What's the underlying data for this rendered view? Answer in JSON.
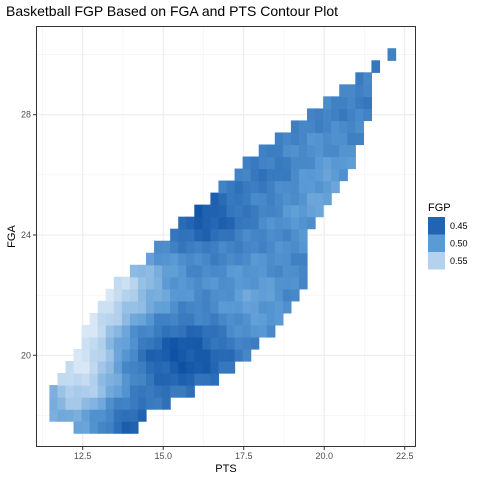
{
  "chart_data": {
    "type": "heatmap",
    "title": "Basketball FGP Based on FGA and PTS Contour Plot",
    "xlabel": "PTS",
    "ylabel": "FGA",
    "xlim": [
      11.05,
      22.85
    ],
    "ylim": [
      16.95,
      30.95
    ],
    "x_ticks": [
      12.5,
      15.0,
      17.5,
      20.0,
      22.5
    ],
    "x_tick_labels": [
      "12.5",
      "15.0",
      "17.5",
      "20.0",
      "22.5"
    ],
    "y_ticks": [
      20,
      24,
      28
    ],
    "y_tick_labels": [
      "20",
      "24",
      "28"
    ],
    "grid": true,
    "legend": {
      "title": "FGP",
      "position": "right",
      "entries": [
        {
          "label": "0.45",
          "value": 0.45
        },
        {
          "label": "0.50",
          "value": 0.5
        },
        {
          "label": "0.55",
          "value": 0.55
        }
      ]
    },
    "fill_scale": {
      "low_value": 0.43,
      "high_value": 0.57,
      "low_color": "#0b4ea2",
      "mid_value": 0.5,
      "mid_color": "#5b9bd5",
      "high_color": "#d7e7f6"
    },
    "region": {
      "x_start": 11.6,
      "x_end": 22.1,
      "x_step": 0.25,
      "y_start": 17.6,
      "y_step": 0.4,
      "rows": [
        {
          "y": 17.6,
          "x_min": 12.2,
          "x_max": 14.2
        },
        {
          "y": 18.0,
          "x_min": 11.6,
          "x_max": 14.5
        },
        {
          "y": 18.4,
          "x_min": 11.6,
          "x_max": 15.2
        },
        {
          "y": 18.8,
          "x_min": 11.6,
          "x_max": 16.0
        },
        {
          "y": 19.2,
          "x_min": 11.8,
          "x_max": 16.8
        },
        {
          "y": 19.6,
          "x_min": 12.0,
          "x_max": 17.3
        },
        {
          "y": 20.0,
          "x_min": 12.2,
          "x_max": 17.6
        },
        {
          "y": 20.4,
          "x_min": 12.4,
          "x_max": 18.0
        },
        {
          "y": 20.8,
          "x_min": 12.6,
          "x_max": 18.4
        },
        {
          "y": 21.2,
          "x_min": 12.8,
          "x_max": 18.8
        },
        {
          "y": 21.6,
          "x_min": 13.0,
          "x_max": 19.0
        },
        {
          "y": 22.0,
          "x_min": 13.3,
          "x_max": 19.3
        },
        {
          "y": 22.4,
          "x_min": 13.6,
          "x_max": 19.4
        },
        {
          "y": 22.8,
          "x_min": 14.0,
          "x_max": 19.4
        },
        {
          "y": 23.2,
          "x_min": 14.4,
          "x_max": 19.4
        },
        {
          "y": 23.6,
          "x_min": 14.8,
          "x_max": 19.4
        },
        {
          "y": 24.0,
          "x_min": 15.3,
          "x_max": 19.4
        },
        {
          "y": 24.4,
          "x_min": 15.6,
          "x_max": 19.6
        },
        {
          "y": 24.8,
          "x_min": 16.0,
          "x_max": 20.0
        },
        {
          "y": 25.2,
          "x_min": 16.4,
          "x_max": 20.3
        },
        {
          "y": 25.6,
          "x_min": 16.8,
          "x_max": 20.5
        },
        {
          "y": 26.0,
          "x_min": 17.2,
          "x_max": 20.7
        },
        {
          "y": 26.4,
          "x_min": 17.6,
          "x_max": 20.9
        },
        {
          "y": 26.8,
          "x_min": 18.0,
          "x_max": 21.0
        },
        {
          "y": 27.2,
          "x_min": 18.5,
          "x_max": 21.1
        },
        {
          "y": 27.6,
          "x_min": 19.0,
          "x_max": 21.2
        },
        {
          "y": 28.0,
          "x_min": 19.4,
          "x_max": 21.4
        },
        {
          "y": 28.4,
          "x_min": 19.9,
          "x_max": 21.5
        },
        {
          "y": 28.8,
          "x_min": 20.4,
          "x_max": 21.5
        },
        {
          "y": 29.2,
          "x_min": 20.9,
          "x_max": 21.5
        },
        {
          "y": 29.6,
          "x_min": 21.4,
          "x_max": 21.7
        },
        {
          "y": 30.0,
          "x_min": 21.9,
          "x_max": 22.1
        }
      ]
    },
    "fgp_features": [
      {
        "type": "light_band",
        "x": 12.4,
        "y": 20.0,
        "value": 0.57,
        "sx": 0.9,
        "sy": 1.9
      },
      {
        "type": "light_band",
        "x": 13.6,
        "y": 22.3,
        "value": 0.545,
        "sx": 1.2,
        "sy": 0.9
      },
      {
        "type": "dark_core",
        "x": 15.6,
        "y": 20.0,
        "value": 0.435,
        "sx": 1.1,
        "sy": 0.8
      },
      {
        "type": "dark_core",
        "x": 13.8,
        "y": 17.8,
        "value": 0.44,
        "sx": 1.1,
        "sy": 0.5
      },
      {
        "type": "dark_core",
        "x": 16.2,
        "y": 24.6,
        "value": 0.44,
        "sx": 0.9,
        "sy": 0.6
      },
      {
        "type": "light_band",
        "x": 17.8,
        "y": 21.8,
        "value": 0.505,
        "sx": 0.8,
        "sy": 1.0
      },
      {
        "type": "light_band",
        "x": 19.8,
        "y": 25.5,
        "value": 0.51,
        "sx": 1.2,
        "sy": 1.2
      },
      {
        "type": "dark_core",
        "x": 18.6,
        "y": 26.0,
        "value": 0.455,
        "sx": 0.8,
        "sy": 0.7
      },
      {
        "type": "dark_core",
        "x": 20.2,
        "y": 28.4,
        "value": 0.475,
        "sx": 0.9,
        "sy": 1.0
      }
    ],
    "base_fgp": 0.478
  }
}
